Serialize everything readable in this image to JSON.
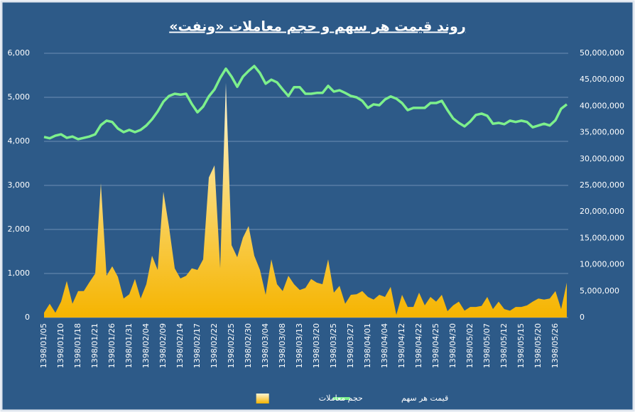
{
  "chart_data": {
    "type": "combo",
    "title": "روند قیمت هر سهم و حجم معاملات «ونفت»",
    "categories": [
      "1398/01/05",
      null,
      null,
      "1398/01/10",
      null,
      null,
      "1398/01/18",
      null,
      null,
      "1398/01/21",
      null,
      null,
      "1398/01/26",
      null,
      null,
      "1398/01/31",
      null,
      null,
      "1398/02/04",
      null,
      null,
      "1398/02/09",
      null,
      null,
      "1398/02/14",
      null,
      null,
      "1398/02/17",
      null,
      null,
      "1398/02/22",
      null,
      null,
      "1398/02/25",
      null,
      null,
      "1398/02/30",
      null,
      null,
      "1398/03/04",
      null,
      null,
      "1398/03/08",
      null,
      null,
      "1398/03/13",
      null,
      null,
      "1398/03/20",
      null,
      null,
      "1398/03/25",
      null,
      null,
      "1398/03/27",
      null,
      null,
      "1398/04/01",
      null,
      null,
      "1398/04/04",
      null,
      null,
      "1398/04/12",
      null,
      null,
      "1398/04/22",
      null,
      null,
      "1398/04/25",
      null,
      null,
      "1398/04/30",
      null,
      null,
      "1398/05/02",
      null,
      null,
      "1398/05/07",
      null,
      null,
      "1398/05/12",
      null,
      null,
      "1398/05/15",
      null,
      null,
      "1398/05/20",
      null,
      null,
      "1398/05/26",
      null,
      null
    ],
    "series": [
      {
        "name": "حجم معاملات",
        "type": "area",
        "axis": "y2",
        "color": "#f5b400",
        "values": [
          900000,
          2600000,
          900000,
          3000000,
          6900000,
          2600000,
          5000000,
          5000000,
          6700000,
          8300000,
          25400000,
          7900000,
          9700000,
          7700000,
          3600000,
          4400000,
          7300000,
          3600000,
          6300000,
          11700000,
          9000000,
          23800000,
          17100000,
          9300000,
          7400000,
          7900000,
          9300000,
          9000000,
          11000000,
          26500000,
          28800000,
          9300000,
          44400000,
          13700000,
          11400000,
          15100000,
          17300000,
          11700000,
          9000000,
          4300000,
          11000000,
          6300000,
          5000000,
          7900000,
          6300000,
          5200000,
          5600000,
          7300000,
          6600000,
          6300000,
          11000000,
          4700000,
          6000000,
          2600000,
          4300000,
          4400000,
          5000000,
          3900000,
          3400000,
          4300000,
          3900000,
          5800000,
          500000,
          4300000,
          2000000,
          2000000,
          4700000,
          2300000,
          3900000,
          3000000,
          4300000,
          1200000,
          2300000,
          3000000,
          1300000,
          2000000,
          2000000,
          2200000,
          3900000,
          1600000,
          3000000,
          1600000,
          1300000,
          2000000,
          2000000,
          2300000,
          3000000,
          3600000,
          3400000,
          3600000,
          5000000,
          1600000,
          6600000
        ]
      },
      {
        "name": "قیمت هر سهم",
        "type": "line",
        "color": "#7df08c",
        "values": [
          4100,
          4070,
          4130,
          4160,
          4080,
          4110,
          4050,
          4080,
          4110,
          4160,
          4370,
          4470,
          4440,
          4290,
          4210,
          4260,
          4210,
          4260,
          4360,
          4500,
          4680,
          4900,
          5030,
          5080,
          5060,
          5080,
          4850,
          4660,
          4790,
          5020,
          5180,
          5440,
          5650,
          5470,
          5240,
          5470,
          5600,
          5710,
          5550,
          5310,
          5400,
          5340,
          5180,
          5030,
          5230,
          5230,
          5080,
          5080,
          5100,
          5100,
          5260,
          5130,
          5160,
          5100,
          5030,
          5000,
          4920,
          4760,
          4840,
          4820,
          4950,
          5020,
          4970,
          4870,
          4710,
          4760,
          4760,
          4760,
          4870,
          4870,
          4920,
          4710,
          4520,
          4420,
          4340,
          4450,
          4600,
          4630,
          4580,
          4400,
          4420,
          4390,
          4470,
          4440,
          4470,
          4440,
          4320,
          4360,
          4400,
          4360,
          4480,
          4740,
          4840
        ]
      }
    ],
    "ylim": [
      0,
      6000
    ],
    "yticks": [
      0,
      {
        "value": 1000,
        "label": "1,000"
      },
      {
        "value": 2000,
        "label": "2,000"
      },
      {
        "value": 3000,
        "label": "3,000"
      },
      {
        "value": 4000,
        "label": "4,000"
      },
      {
        "value": 5000,
        "label": "5,000"
      },
      {
        "value": 6000,
        "label": "6,000"
      }
    ],
    "y2lim": [
      0,
      50000000
    ],
    "y2ticks": [
      0,
      {
        "value": 5000000,
        "label": "5,000,000"
      },
      {
        "value": 10000000,
        "label": "10,000,000"
      },
      {
        "value": 15000000,
        "label": "15,000,000"
      },
      {
        "value": 20000000,
        "label": "20,000,000"
      },
      {
        "value": 25000000,
        "label": "25,000,000"
      },
      {
        "value": 30000000,
        "label": "30,000,000"
      },
      {
        "value": 35000000,
        "label": "35,000,000"
      },
      {
        "value": 40000000,
        "label": "40,000,000"
      },
      {
        "value": 45000000,
        "label": "45,000,000"
      },
      {
        "value": 50000000,
        "label": "50,000,000"
      }
    ],
    "grid": true,
    "legend": "bottom"
  }
}
